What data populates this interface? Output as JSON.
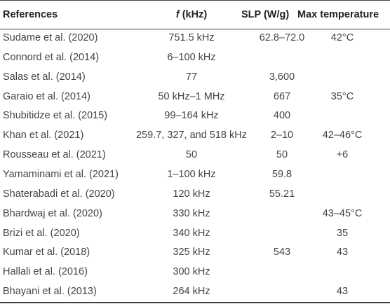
{
  "header": {
    "col_references": "References",
    "col_f_symbol": "f",
    "col_f_unit": " (kHz)",
    "col_slp": "SLP (W/g)",
    "col_max_temp": "Max temperature"
  },
  "rows": [
    {
      "ref": "Sudame et al. (2020)",
      "f": "751.5 kHz",
      "slp": "62.8–72.0",
      "temp": "42°C"
    },
    {
      "ref": "Connord et al. (2014)",
      "f": "6–100 kHz",
      "slp": "",
      "temp": ""
    },
    {
      "ref": "Salas et al. (2014)",
      "f": "77",
      "slp": "3,600",
      "temp": ""
    },
    {
      "ref": "Garaio et al. (2014)",
      "f": "50 kHz–1 MHz",
      "slp": "667",
      "temp": "35°C"
    },
    {
      "ref": "Shubitidze et al. (2015)",
      "f": "99–164 kHz",
      "slp": "400",
      "temp": ""
    },
    {
      "ref": "Khan et al. (2021)",
      "f": "259.7, 327, and 518 kHz",
      "slp": "2–10",
      "temp": "42–46°C"
    },
    {
      "ref": "Rousseau et al. (2021)",
      "f": "50",
      "slp": "50",
      "temp": "+6"
    },
    {
      "ref": "Yamaminami et al. (2021)",
      "f": "1–100 kHz",
      "slp": "59.8",
      "temp": ""
    },
    {
      "ref": "Shaterabadi et al. (2020)",
      "f": "120 kHz",
      "slp": "55.21",
      "temp": ""
    },
    {
      "ref": "Bhardwaj et al. (2020)",
      "f": "330 kHz",
      "slp": "",
      "temp": "43–45°C"
    },
    {
      "ref": "Brizi et al. (2020)",
      "f": "340 kHz",
      "slp": "",
      "temp": "35"
    },
    {
      "ref": "Kumar et al. (2018)",
      "f": "325 kHz",
      "slp": "543",
      "temp": "43"
    },
    {
      "ref": "Hallali et al. (2016)",
      "f": "300 kHz",
      "slp": "",
      "temp": ""
    },
    {
      "ref": "Bhayani et al. (2013)",
      "f": "264 kHz",
      "slp": "",
      "temp": "43"
    }
  ]
}
